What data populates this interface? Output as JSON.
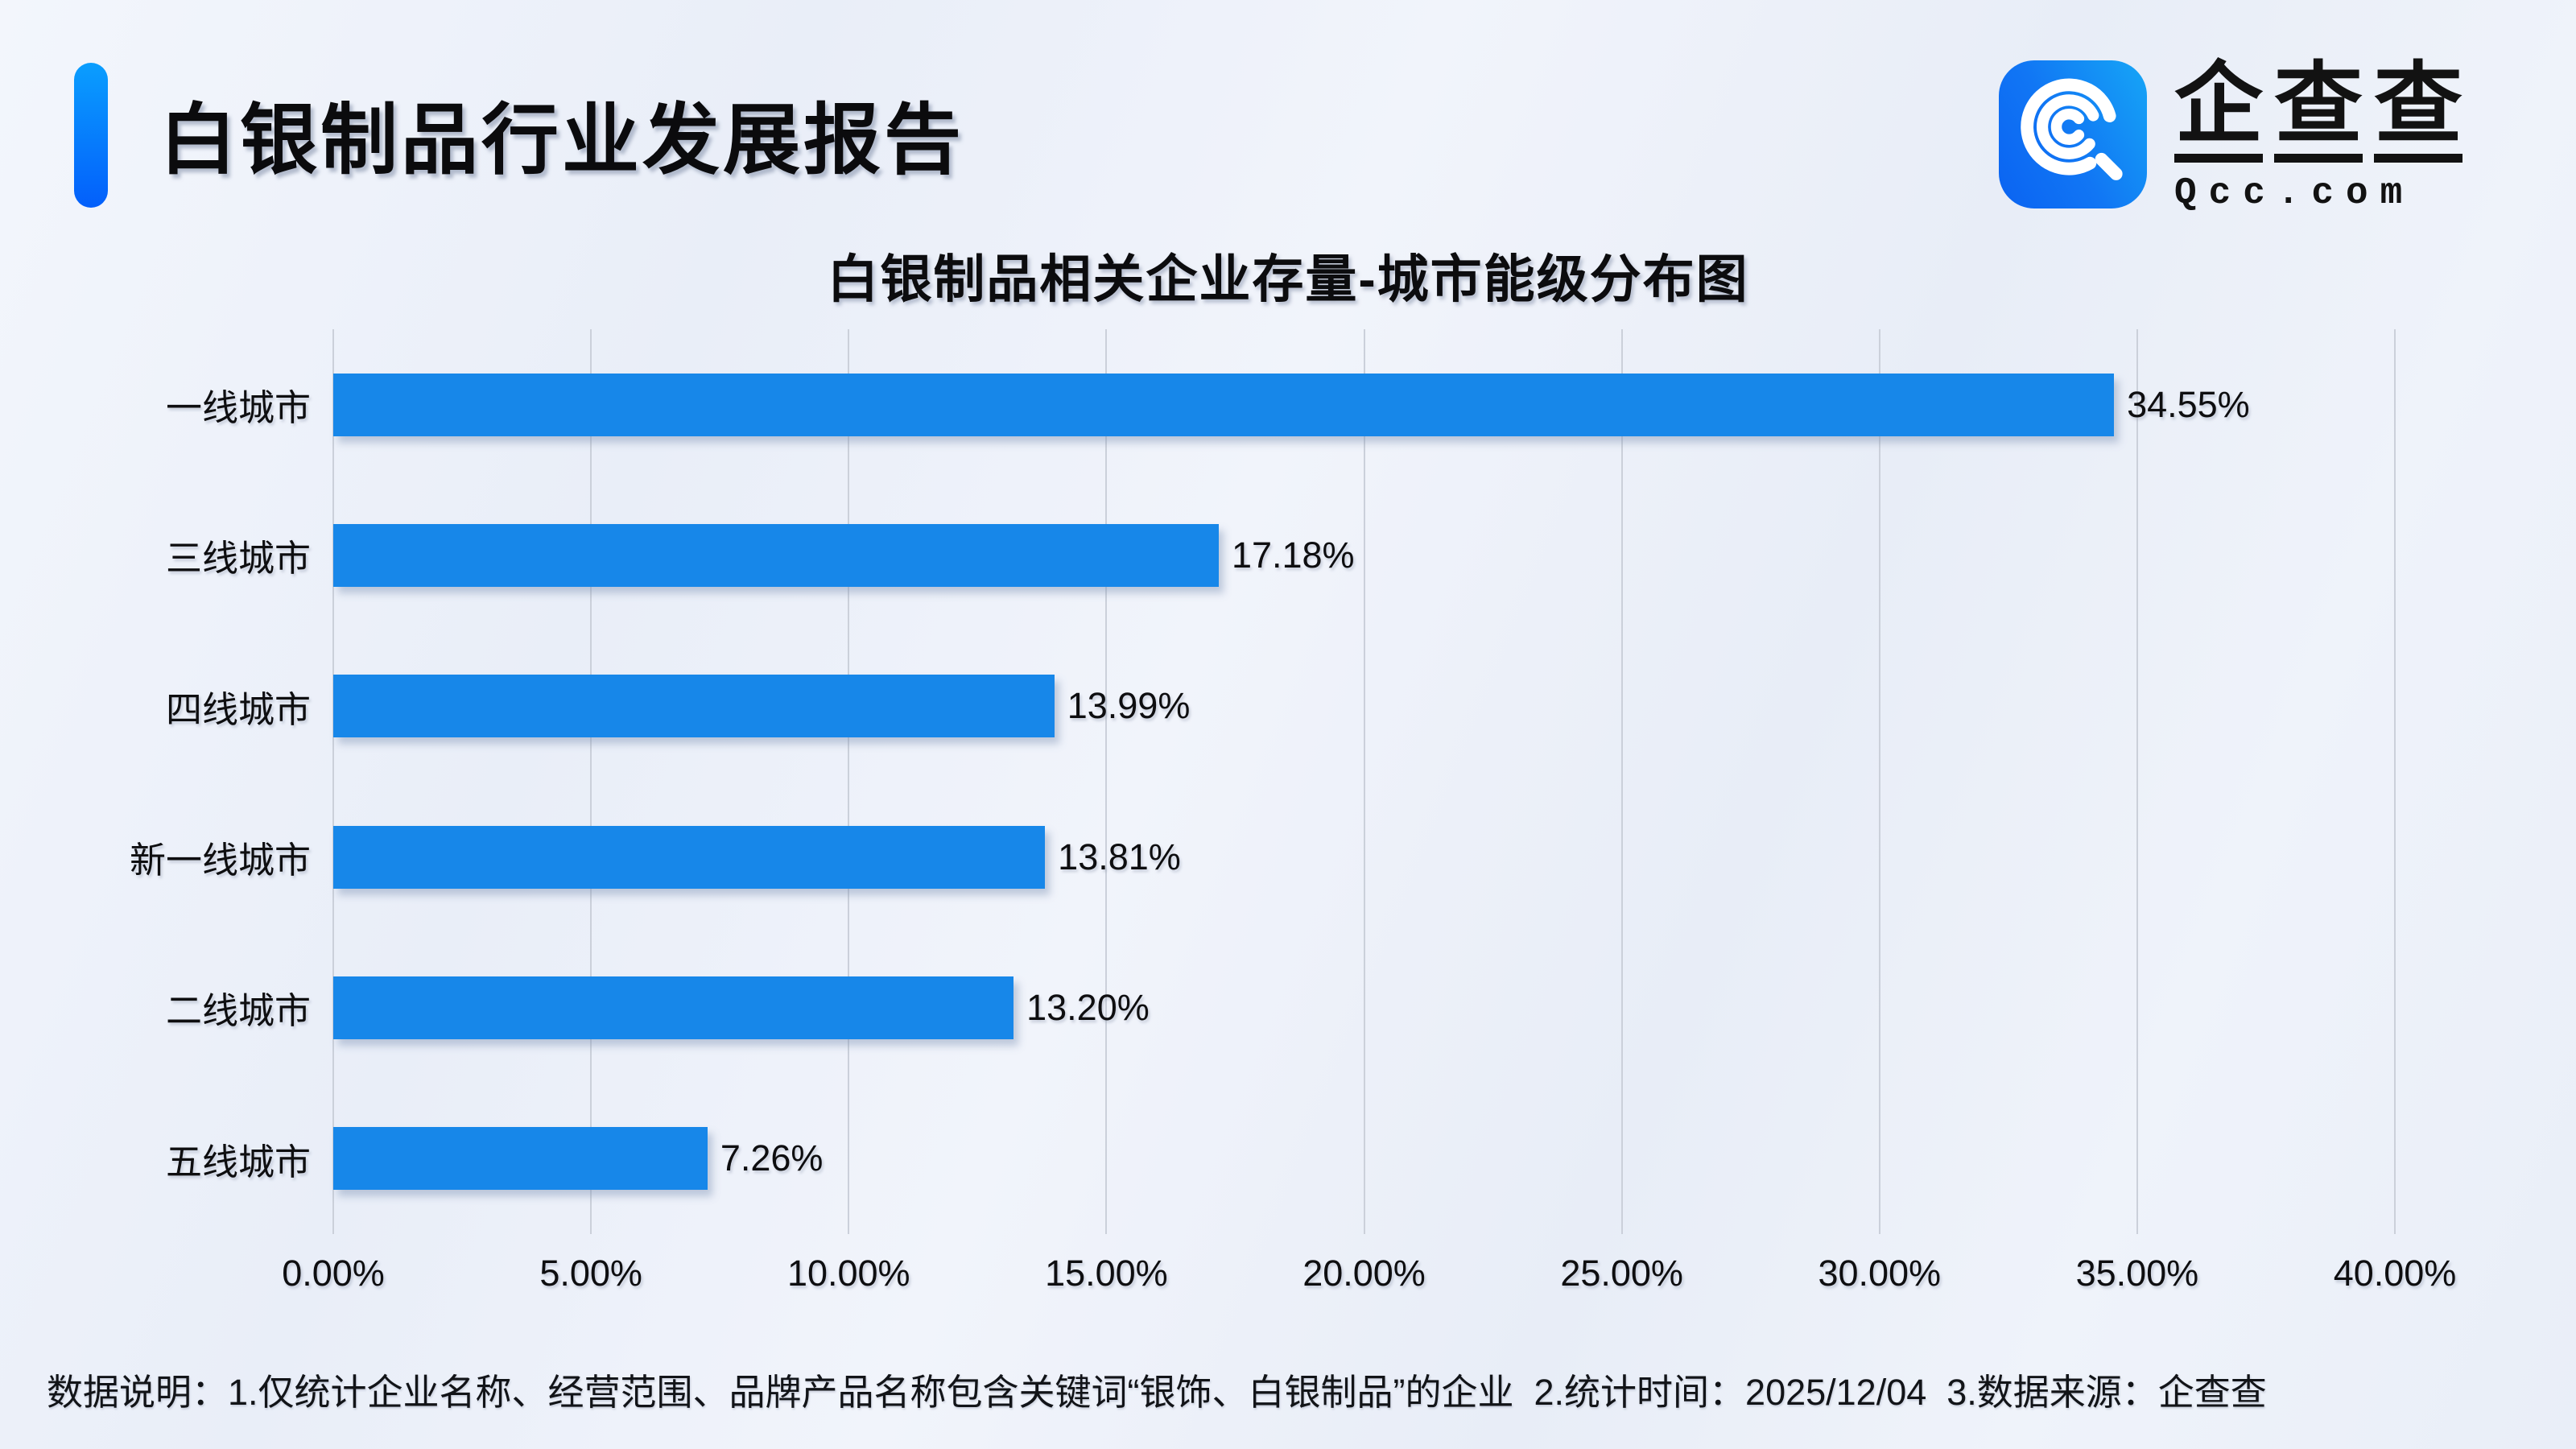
{
  "header": {
    "title": "白银制品行业发展报告",
    "accent_color_top": "#0a9efe",
    "accent_color_bottom": "#035ffb",
    "logo": {
      "icon": "qcc-magnifier-icon",
      "brand_chars": [
        "企",
        "查",
        "查"
      ],
      "brand_name": "企查查",
      "domain": "Qcc.com",
      "square_gradient": [
        "#0a63f2",
        "#16a6f6"
      ]
    }
  },
  "chart_data": {
    "type": "bar",
    "orientation": "horizontal",
    "title": "白银制品相关企业存量-城市能级分布图",
    "categories": [
      "一线城市",
      "三线城市",
      "四线城市",
      "新一线城市",
      "二线城市",
      "五线城市"
    ],
    "values": [
      34.55,
      17.18,
      13.99,
      13.81,
      13.2,
      7.26
    ],
    "value_labels": [
      "34.55%",
      "17.18%",
      "13.99%",
      "13.81%",
      "13.20%",
      "7.26%"
    ],
    "x_ticks": [
      "0.00%",
      "5.00%",
      "10.00%",
      "15.00%",
      "20.00%",
      "25.00%",
      "30.00%",
      "35.00%",
      "40.00%"
    ],
    "xlim": [
      0,
      40
    ],
    "grid": true,
    "legend": "none",
    "bar_color": "#1787e9",
    "gridline_color": "#cbd0da"
  },
  "footer": {
    "note": "数据说明：1.仅统计企业名称、经营范围、品牌产品名称包含关键词“银饰、白银制品”的企业  2.统计时间：2025/12/04  3.数据来源：企查查"
  }
}
